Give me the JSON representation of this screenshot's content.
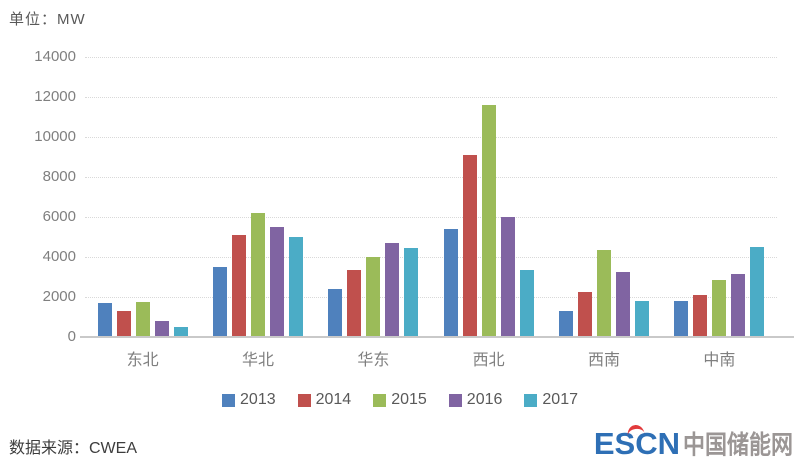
{
  "unit_label": "单位：MW",
  "chart_data": {
    "type": "bar",
    "title": "单位：MW",
    "unit": "MW",
    "categories": [
      "东北",
      "华北",
      "华东",
      "西北",
      "西南",
      "中南"
    ],
    "series": [
      {
        "name": "2013",
        "color": "#4F81BD",
        "values": [
          1700,
          3500,
          2400,
          5400,
          1300,
          1800
        ]
      },
      {
        "name": "2014",
        "color": "#C0504D",
        "values": [
          1300,
          5100,
          3350,
          9100,
          2250,
          2100
        ]
      },
      {
        "name": "2015",
        "color": "#9BBB59",
        "values": [
          1750,
          6200,
          4000,
          11600,
          4350,
          2850
        ]
      },
      {
        "name": "2016",
        "color": "#8064A2",
        "values": [
          800,
          5500,
          4700,
          6000,
          3250,
          3150
        ]
      },
      {
        "name": "2017",
        "color": "#4BACC6",
        "values": [
          500,
          5000,
          4450,
          3350,
          1800,
          4500
        ]
      }
    ],
    "ylim": [
      0,
      14000
    ],
    "ytick_step": 2000,
    "yticks": [
      0,
      2000,
      4000,
      6000,
      8000,
      10000,
      12000,
      14000
    ],
    "grid": "horizontal dotted",
    "legend_position": "bottom"
  },
  "footer": {
    "source": "数据来源：CWEA",
    "logo": {
      "escn": "ESCN",
      "cn": "中国储能网",
      "escn_color": "#2E6FB5",
      "cn_color": "#9B9695",
      "accent_color": "#E23A3C"
    }
  }
}
